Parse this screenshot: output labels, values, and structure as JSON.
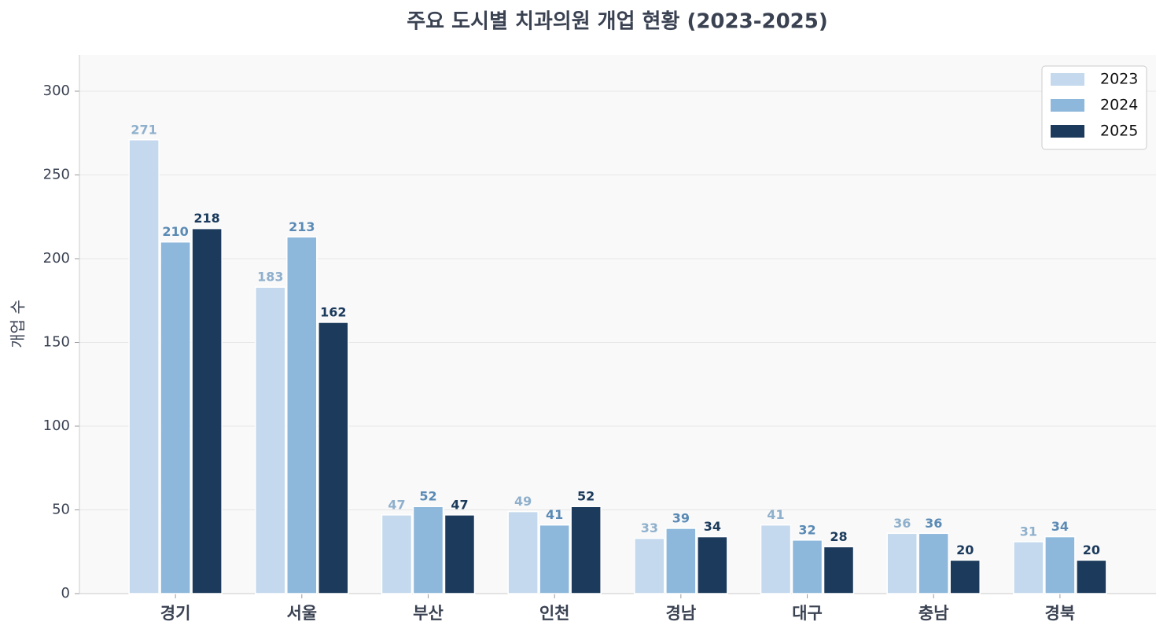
{
  "chart_data": {
    "type": "bar",
    "title": "주요 도시별 치과의원 개업 현황 (2023-2025)",
    "y_label": "개업 수",
    "categories": [
      "경기",
      "서울",
      "부산",
      "인천",
      "경남",
      "대구",
      "충남",
      "경북"
    ],
    "series": [
      {
        "name": "2023",
        "color": "#c4d9ed",
        "label_color": "#8fb0cc",
        "values": [
          271,
          183,
          47,
          49,
          33,
          41,
          36,
          31
        ]
      },
      {
        "name": "2024",
        "color": "#8db7db",
        "label_color": "#5a8ab5",
        "values": [
          210,
          213,
          52,
          41,
          39,
          32,
          36,
          34
        ]
      },
      {
        "name": "2025",
        "color": "#1b3a5c",
        "label_color": "#1b3a5c",
        "values": [
          218,
          162,
          47,
          52,
          34,
          28,
          20,
          20
        ]
      }
    ],
    "ylim": [
      0,
      321.6
    ],
    "yticks": [
      0,
      50,
      100,
      150,
      200,
      250,
      300
    ],
    "grid": true,
    "legend": "upper right"
  }
}
